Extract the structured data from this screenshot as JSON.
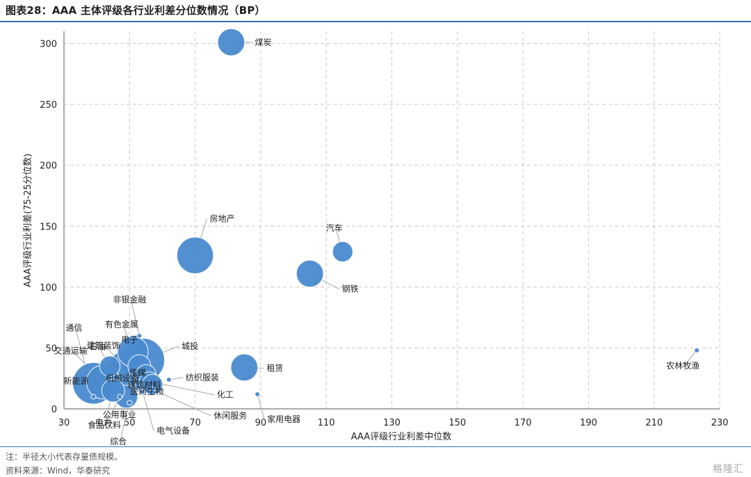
{
  "header": {
    "title": "图表28：AAA 主体评级各行业利差分位数情况（BP）"
  },
  "footer": {
    "note": "注：半径大小代表存量债规模。",
    "source": "资料来源：Wind，华泰研究",
    "watermark": "格隆汇"
  },
  "chart_data": {
    "type": "scatter",
    "title": "AAA 主体评级各行业利差分位数情况（BP）",
    "xlabel": "AAA评级行业利差中位数",
    "ylabel": "AAA评级行业利差(75-25分位数)",
    "xlim": [
      30,
      230
    ],
    "ylim": [
      0,
      310
    ],
    "x_ticks": [
      30,
      50,
      70,
      90,
      110,
      130,
      150,
      170,
      190,
      210,
      230
    ],
    "y_ticks": [
      0,
      50,
      100,
      150,
      200,
      250,
      300
    ],
    "grid": true,
    "bubble_size_meaning": "存量债规模",
    "points": [
      {
        "label": "煤炭",
        "x": 81,
        "y": 301,
        "size": 3,
        "label_offset": [
          30,
          0
        ]
      },
      {
        "label": "房地产",
        "x": 70,
        "y": 126,
        "size": 6,
        "label_offset": [
          17,
          -53
        ]
      },
      {
        "label": "汽车",
        "x": 115,
        "y": 129,
        "size": 1.5,
        "label_offset": [
          -10,
          -34
        ]
      },
      {
        "label": "钢铁",
        "x": 105,
        "y": 111,
        "size": 3,
        "label_offset": [
          42,
          22
        ]
      },
      {
        "label": "农林牧渔",
        "x": 223,
        "y": 48,
        "size": 1,
        "label_offset": [
          -18,
          22
        ]
      },
      {
        "label": "租赁",
        "x": 85,
        "y": 34,
        "size": 3,
        "label_offset": [
          28,
          1
        ]
      },
      {
        "label": "家用电器",
        "x": 89,
        "y": 12,
        "size": 1,
        "label_offset": [
          10,
          36
        ]
      },
      {
        "label": "城投",
        "x": 54,
        "y": 40,
        "size": 9,
        "label_offset": [
          52,
          -20
        ]
      },
      {
        "label": "通信",
        "x": 39,
        "y": 10,
        "size": 1,
        "label_offset": [
          -26,
          -99
        ]
      },
      {
        "label": "交通运输",
        "x": 42,
        "y": 22,
        "size": 5,
        "label_offset": [
          -45,
          -45
        ]
      },
      {
        "label": "石油",
        "x": 44,
        "y": 35,
        "size": 1.5,
        "label_offset": [
          -16,
          -28
        ]
      },
      {
        "label": "新能源",
        "x": 39,
        "y": 21,
        "size": 8,
        "label_offset": [
          -23,
          -3
        ]
      },
      {
        "label": "非银金融",
        "x": 53,
        "y": 60,
        "size": 1,
        "label_offset": [
          -12,
          -52
        ]
      },
      {
        "label": "有色金属",
        "x": 51,
        "y": 47,
        "size": 4,
        "label_offset": [
          -14,
          -39
        ]
      },
      {
        "label": "建筑装饰",
        "x": 49,
        "y": 33,
        "size": 6,
        "label_offset": [
          -31,
          -33
        ]
      },
      {
        "label": "电子",
        "x": 53,
        "y": 35,
        "size": 2,
        "label_offset": [
          -12,
          -38
        ]
      },
      {
        "label": "传媒",
        "x": 55,
        "y": 28,
        "size": 1.5,
        "label_offset": [
          -10,
          -3
        ]
      },
      {
        "label": "机械设备",
        "x": 54,
        "y": 25,
        "size": 3,
        "label_offset": [
          -27,
          0
        ]
      },
      {
        "label": "建筑材料",
        "x": 56,
        "y": 22,
        "size": 1.5,
        "label_offset": [
          -5,
          4
        ]
      },
      {
        "label": "医药生物",
        "x": 57,
        "y": 20,
        "size": 1.5,
        "label_offset": [
          -6,
          10
        ]
      },
      {
        "label": "纺织服装",
        "x": 62,
        "y": 24,
        "size": 1,
        "label_offset": [
          20,
          -3
        ]
      },
      {
        "label": "化工",
        "x": 55,
        "y": 23,
        "size": 2,
        "label_offset": [
          98,
          20
        ]
      },
      {
        "label": "休闲服务",
        "x": 57,
        "y": 16,
        "size": 1,
        "label_offset": [
          84,
          38
        ]
      },
      {
        "label": "电气设备",
        "x": 54,
        "y": 14,
        "size": 1,
        "label_offset": [
          16,
          56
        ]
      },
      {
        "label": "公用事业",
        "x": 49,
        "y": 10,
        "size": 2,
        "label_offset": [
          -8,
          26
        ]
      },
      {
        "label": "食品饮料",
        "x": 47,
        "y": 10,
        "size": 1,
        "label_offset": [
          -20,
          41
        ]
      },
      {
        "label": "综合",
        "x": 50,
        "y": 5,
        "size": 1,
        "label_offset": [
          -14,
          56
        ]
      },
      {
        "label": "电力",
        "x": 45,
        "y": 15,
        "size": 2,
        "label_offset": [
          -12,
          46
        ]
      }
    ]
  }
}
